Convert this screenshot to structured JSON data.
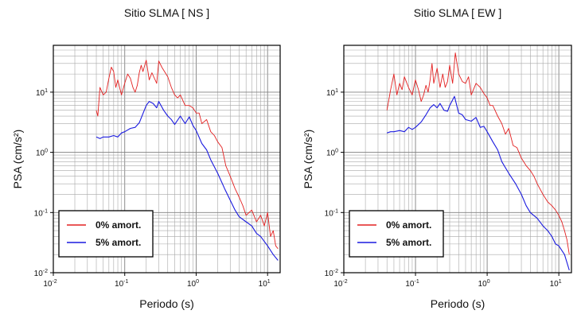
{
  "chart_data": [
    {
      "type": "line",
      "title": "Sitio SLMA [ NS ]",
      "xlabel": "Periodo (s)",
      "ylabel": "PSA (cm/s²)",
      "xscale": "log",
      "yscale": "log",
      "xlim": [
        0.01,
        15
      ],
      "ylim": [
        0.01,
        60
      ],
      "grid": true,
      "legend_position": "bottom-left",
      "x_ticks": [
        "10-2",
        "10-1",
        "100",
        "101"
      ],
      "y_ticks": [
        "10-2",
        "10-1",
        "100",
        "101"
      ],
      "series": [
        {
          "name": "0% amort.",
          "color": "#e32020",
          "x": [
            0.04,
            0.042,
            0.045,
            0.05,
            0.055,
            0.06,
            0.065,
            0.07,
            0.075,
            0.08,
            0.09,
            0.1,
            0.11,
            0.12,
            0.13,
            0.14,
            0.15,
            0.16,
            0.17,
            0.18,
            0.2,
            0.22,
            0.24,
            0.26,
            0.28,
            0.3,
            0.33,
            0.36,
            0.4,
            0.45,
            0.5,
            0.55,
            0.6,
            0.7,
            0.8,
            0.9,
            1.0,
            1.1,
            1.2,
            1.4,
            1.6,
            1.8,
            2.0,
            2.3,
            2.6,
            3.0,
            3.5,
            4.0,
            4.5,
            5.0,
            6.0,
            7.0,
            8.0,
            9.0,
            10.0,
            11.0,
            12.0,
            13.0,
            14.0
          ],
          "values": [
            5.0,
            4.0,
            12.0,
            9.0,
            10.0,
            17.0,
            26.0,
            22.0,
            12.0,
            16.0,
            9.0,
            14.0,
            20.0,
            17.0,
            12.0,
            10.0,
            13.0,
            21.0,
            28.0,
            22.0,
            34.0,
            16.0,
            21.0,
            17.0,
            14.0,
            33.0,
            26.0,
            22.0,
            18.0,
            12.0,
            9.0,
            8.0,
            9.0,
            6.0,
            6.0,
            5.5,
            4.5,
            4.5,
            3.0,
            3.5,
            2.2,
            1.9,
            1.5,
            1.2,
            0.6,
            0.4,
            0.25,
            0.18,
            0.13,
            0.09,
            0.11,
            0.07,
            0.09,
            0.06,
            0.1,
            0.04,
            0.05,
            0.028,
            0.025
          ]
        },
        {
          "name": "5% amort.",
          "color": "#1a1adf",
          "x": [
            0.04,
            0.045,
            0.05,
            0.06,
            0.07,
            0.08,
            0.09,
            0.1,
            0.12,
            0.14,
            0.16,
            0.18,
            0.2,
            0.22,
            0.25,
            0.28,
            0.3,
            0.35,
            0.4,
            0.45,
            0.5,
            0.6,
            0.7,
            0.8,
            0.9,
            1.0,
            1.2,
            1.4,
            1.6,
            2.0,
            2.5,
            3.0,
            3.5,
            4.0,
            5.0,
            6.0,
            7.0,
            8.0,
            9.0,
            10.0,
            12.0,
            14.0
          ],
          "values": [
            1.8,
            1.7,
            1.8,
            1.8,
            1.9,
            1.8,
            2.1,
            2.2,
            2.5,
            2.6,
            3.1,
            4.4,
            6.0,
            7.0,
            6.5,
            5.5,
            7.0,
            5.0,
            4.0,
            3.5,
            2.9,
            4.0,
            3.0,
            3.9,
            2.8,
            2.3,
            1.4,
            1.1,
            0.75,
            0.45,
            0.25,
            0.16,
            0.11,
            0.085,
            0.07,
            0.06,
            0.045,
            0.04,
            0.033,
            0.028,
            0.02,
            0.016
          ]
        }
      ]
    },
    {
      "type": "line",
      "title": "Sitio SLMA [ EW ]",
      "xlabel": "Periodo (s)",
      "ylabel": "PSA (cm/s²)",
      "xscale": "log",
      "yscale": "log",
      "xlim": [
        0.01,
        15
      ],
      "ylim": [
        0.01,
        60
      ],
      "grid": true,
      "legend_position": "bottom-left",
      "x_ticks": [
        "10-2",
        "10-1",
        "100",
        "101"
      ],
      "y_ticks": [
        "10-2",
        "10-1",
        "100",
        "101"
      ],
      "series": [
        {
          "name": "0% amort.",
          "color": "#e32020",
          "x": [
            0.04,
            0.045,
            0.05,
            0.055,
            0.06,
            0.065,
            0.07,
            0.08,
            0.09,
            0.1,
            0.11,
            0.12,
            0.13,
            0.14,
            0.15,
            0.16,
            0.17,
            0.18,
            0.2,
            0.22,
            0.24,
            0.26,
            0.28,
            0.3,
            0.33,
            0.36,
            0.4,
            0.45,
            0.5,
            0.55,
            0.6,
            0.7,
            0.8,
            0.9,
            1.0,
            1.1,
            1.2,
            1.4,
            1.6,
            1.8,
            2.0,
            2.3,
            2.6,
            3.0,
            3.5,
            4.0,
            4.5,
            5.0,
            6.0,
            7.0,
            8.0,
            9.0,
            10.0,
            11.0,
            12.0,
            13.0,
            14.0
          ],
          "values": [
            5.0,
            11.0,
            20.0,
            9.0,
            14.0,
            11.0,
            18.0,
            12.0,
            9.0,
            16.0,
            11.0,
            7.0,
            9.0,
            13.0,
            10.0,
            16.0,
            30.0,
            14.0,
            25.0,
            12.0,
            20.0,
            12.0,
            15.0,
            28.0,
            14.0,
            45.0,
            20.0,
            15.0,
            14.0,
            18.0,
            9.0,
            14.0,
            12.0,
            9.5,
            8.0,
            6.0,
            6.0,
            4.0,
            3.0,
            2.0,
            2.5,
            1.3,
            1.2,
            0.8,
            0.6,
            0.5,
            0.4,
            0.3,
            0.2,
            0.15,
            0.13,
            0.11,
            0.09,
            0.07,
            0.05,
            0.035,
            0.02
          ]
        },
        {
          "name": "5% amort.",
          "color": "#1a1adf",
          "x": [
            0.04,
            0.045,
            0.05,
            0.06,
            0.07,
            0.08,
            0.09,
            0.1,
            0.12,
            0.14,
            0.16,
            0.18,
            0.2,
            0.22,
            0.25,
            0.28,
            0.3,
            0.35,
            0.4,
            0.45,
            0.5,
            0.6,
            0.7,
            0.8,
            0.9,
            1.0,
            1.2,
            1.4,
            1.6,
            2.0,
            2.5,
            3.0,
            3.5,
            4.0,
            5.0,
            6.0,
            7.0,
            8.0,
            9.0,
            10.0,
            12.0,
            14.0
          ],
          "values": [
            2.1,
            2.2,
            2.2,
            2.3,
            2.2,
            2.6,
            2.4,
            2.6,
            3.2,
            4.2,
            5.5,
            6.2,
            5.5,
            6.5,
            5.0,
            4.8,
            6.0,
            8.5,
            4.5,
            4.2,
            3.5,
            3.3,
            3.8,
            2.6,
            2.7,
            2.2,
            1.5,
            1.1,
            0.7,
            0.45,
            0.3,
            0.2,
            0.13,
            0.1,
            0.08,
            0.06,
            0.05,
            0.04,
            0.03,
            0.028,
            0.02,
            0.011
          ]
        }
      ]
    }
  ]
}
